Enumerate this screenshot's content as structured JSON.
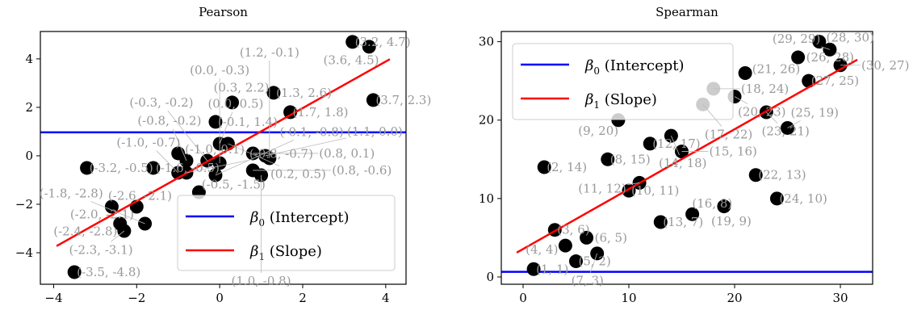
{
  "chart_data": [
    {
      "type": "scatter",
      "title": "Pearson",
      "xlim": [
        -4.32,
        4.49
      ],
      "ylim": [
        -5.3,
        5.13
      ],
      "xticks": [
        -4,
        -2,
        0,
        2,
        4
      ],
      "yticks": [
        -4,
        -2,
        0,
        2,
        4
      ],
      "tick_labels_x": [
        "−4",
        "−2",
        "0",
        "2",
        "4"
      ],
      "tick_labels_y": [
        "−4",
        "−2",
        "0",
        "2",
        "4"
      ],
      "label_decimals": 1,
      "points": [
        [
          3.2,
          4.7
        ],
        [
          3.6,
          4.5
        ],
        [
          3.7,
          2.3
        ],
        [
          1.3,
          2.6
        ],
        [
          0.3,
          2.2
        ],
        [
          1.7,
          1.8
        ],
        [
          -0.1,
          1.4
        ],
        [
          -3.2,
          -0.5
        ],
        [
          -3.5,
          -4.8
        ],
        [
          -0.5,
          -1.5
        ],
        [
          -2.6,
          -2.1
        ],
        [
          -2.0,
          -2.1
        ],
        [
          -2.4,
          -2.8
        ],
        [
          -2.3,
          -3.1
        ],
        [
          -1.8,
          -2.8
        ],
        [
          -1.6,
          -0.5
        ],
        [
          -1.0,
          0.1
        ],
        [
          -1.0,
          -0.7
        ],
        [
          -0.8,
          -0.2
        ],
        [
          -0.8,
          -0.7
        ],
        [
          -0.3,
          -0.2
        ],
        [
          0.0,
          0.5
        ],
        [
          0.2,
          0.5
        ],
        [
          -0.1,
          -0.8
        ],
        [
          0.0,
          -0.3
        ],
        [
          0.8,
          0.1
        ],
        [
          0.8,
          -0.6
        ],
        [
          1.1,
          0.0
        ],
        [
          1.0,
          -0.8
        ],
        [
          1.2,
          -0.1
        ]
      ],
      "intercept_line": {
        "y": 0.97,
        "color": "#0000ff"
      },
      "slope_line": {
        "slope": 0.96,
        "intercept": 0.05,
        "x_range": [
          -3.93,
          4.1
        ],
        "color": "#ff0000"
      },
      "legend": {
        "placement": "lower-right",
        "entries": [
          {
            "symbol": "β",
            "sub": "0",
            "text": " (Intercept)",
            "color": "#0000ff"
          },
          {
            "symbol": "β",
            "sub": "1",
            "text": " (Slope)",
            "color": "#ff0000"
          }
        ]
      }
    },
    {
      "type": "scatter",
      "title": "Spearman",
      "xlim": [
        -2.06,
        33.05
      ],
      "ylim": [
        -0.93,
        31.3
      ],
      "xticks": [
        0,
        10,
        20,
        30
      ],
      "yticks": [
        0,
        10,
        20,
        30
      ],
      "tick_labels_x": [
        "0",
        "10",
        "20",
        "30"
      ],
      "tick_labels_y": [
        "0",
        "10",
        "20",
        "30"
      ],
      "label_decimals": 0,
      "points": [
        [
          1,
          1
        ],
        [
          2,
          14
        ],
        [
          3,
          6
        ],
        [
          4,
          4
        ],
        [
          5,
          2
        ],
        [
          6,
          5
        ],
        [
          7,
          3
        ],
        [
          8,
          15
        ],
        [
          9,
          20
        ],
        [
          10,
          11
        ],
        [
          11,
          12
        ],
        [
          12,
          17
        ],
        [
          13,
          7
        ],
        [
          14,
          18
        ],
        [
          15,
          16
        ],
        [
          16,
          8
        ],
        [
          17,
          22
        ],
        [
          18,
          24
        ],
        [
          19,
          9
        ],
        [
          20,
          23
        ],
        [
          21,
          26
        ],
        [
          22,
          13
        ],
        [
          23,
          21
        ],
        [
          24,
          10
        ],
        [
          25,
          19
        ],
        [
          26,
          28
        ],
        [
          27,
          25
        ],
        [
          28,
          30
        ],
        [
          29,
          29
        ],
        [
          30,
          27
        ]
      ],
      "intercept_line": {
        "y": 0.65,
        "color": "#0000ff"
      },
      "slope_line": {
        "slope": 0.764,
        "intercept": 3.56,
        "x_range": [
          -0.6,
          31.6
        ],
        "color": "#ff0000"
      },
      "legend": {
        "placement": "upper-left",
        "entries": [
          {
            "symbol": "β",
            "sub": "0",
            "text": " (Intercept)",
            "color": "#0000ff"
          },
          {
            "symbol": "β",
            "sub": "1",
            "text": " (Slope)",
            "color": "#ff0000"
          }
        ]
      }
    }
  ]
}
